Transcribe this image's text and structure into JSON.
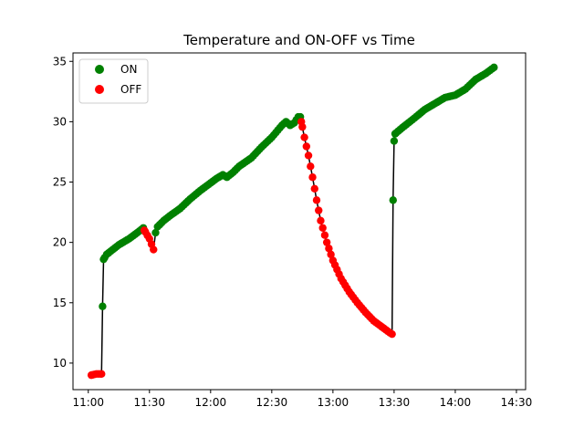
{
  "chart_data": {
    "type": "scatter",
    "title": "Temperature and ON-OFF vs Time",
    "xlabel": "",
    "ylabel": "",
    "x_ticks": [
      "11:00",
      "11:30",
      "12:00",
      "12:30",
      "13:00",
      "13:30",
      "14:00",
      "14:30"
    ],
    "x_tick_minutes": [
      660,
      690,
      720,
      750,
      780,
      810,
      840,
      870
    ],
    "y_ticks": [
      10,
      15,
      20,
      25,
      30,
      35
    ],
    "xlim": [
      "10:52",
      "14:34"
    ],
    "xlim_minutes": [
      652.5,
      874.5
    ],
    "ylim": [
      7.8,
      35.7
    ],
    "legend_position": "top-left",
    "legend": [
      {
        "label": "ON",
        "color": "#008000"
      },
      {
        "label": "OFF",
        "color": "#ff0000"
      }
    ],
    "line_color": "#000000",
    "series": [
      {
        "name": "ON",
        "color": "#008000",
        "segments": [
          {
            "start": "11:07",
            "end": "11:27",
            "knots": [
              [
                667,
                14.7
              ],
              [
                667.5,
                18.6
              ],
              [
                669,
                19.0
              ],
              [
                672,
                19.4
              ],
              [
                675,
                19.8
              ],
              [
                680,
                20.3
              ],
              [
                684,
                20.8
              ],
              [
                687,
                21.2
              ]
            ]
          },
          {
            "start": "11:33",
            "end": "12:47",
            "knots": [
              [
                693,
                20.8
              ],
              [
                694,
                21.3
              ],
              [
                697,
                21.8
              ],
              [
                700,
                22.2
              ],
              [
                705,
                22.8
              ],
              [
                710,
                23.6
              ],
              [
                715,
                24.3
              ],
              [
                719,
                24.8
              ],
              [
                723,
                25.3
              ],
              [
                726,
                25.6
              ],
              [
                728,
                25.4
              ],
              [
                731,
                25.8
              ],
              [
                734,
                26.3
              ],
              [
                740,
                27.0
              ],
              [
                745,
                27.9
              ],
              [
                750,
                28.7
              ],
              [
                753,
                29.3
              ],
              [
                755,
                29.7
              ],
              [
                757,
                30.0
              ],
              [
                759,
                29.7
              ],
              [
                761,
                29.9
              ],
              [
                763,
                30.4
              ],
              [
                764,
                30.4
              ]
            ]
          },
          {
            "start": "13:34",
            "end": "14:24",
            "knots": [
              [
                809.5,
                23.5
              ],
              [
                810,
                28.4
              ],
              [
                810.5,
                29.0
              ],
              [
                814,
                29.5
              ],
              [
                820,
                30.3
              ],
              [
                825,
                31.0
              ],
              [
                830,
                31.5
              ],
              [
                835,
                32.0
              ],
              [
                840,
                32.2
              ],
              [
                845,
                32.7
              ],
              [
                850,
                33.5
              ],
              [
                855,
                34.0
              ],
              [
                859,
                34.5
              ]
            ]
          }
        ]
      },
      {
        "name": "OFF",
        "color": "#ff0000",
        "segments": [
          {
            "start": "11:01",
            "end": "11:06",
            "knots": [
              [
                661.5,
                9.0
              ],
              [
                664,
                9.1
              ],
              [
                666.5,
                9.1
              ]
            ]
          },
          {
            "start": "11:27",
            "end": "11:32",
            "knots": [
              [
                687.5,
                21.0
              ],
              [
                690,
                20.3
              ],
              [
                692,
                19.4
              ]
            ]
          },
          {
            "start": "12:47",
            "end": "13:33",
            "knots": [
              [
                764.5,
                30.0
              ],
              [
                766,
                28.7
              ],
              [
                768,
                27.2
              ],
              [
                770,
                25.4
              ],
              [
                772,
                23.5
              ],
              [
                774,
                21.8
              ],
              [
                777,
                20.0
              ],
              [
                780,
                18.5
              ],
              [
                784,
                17.0
              ],
              [
                788,
                15.9
              ],
              [
                792,
                15.0
              ],
              [
                796,
                14.2
              ],
              [
                800,
                13.5
              ],
              [
                804,
                13.0
              ],
              [
                808,
                12.5
              ],
              [
                809,
                12.4
              ]
            ]
          }
        ]
      }
    ]
  }
}
